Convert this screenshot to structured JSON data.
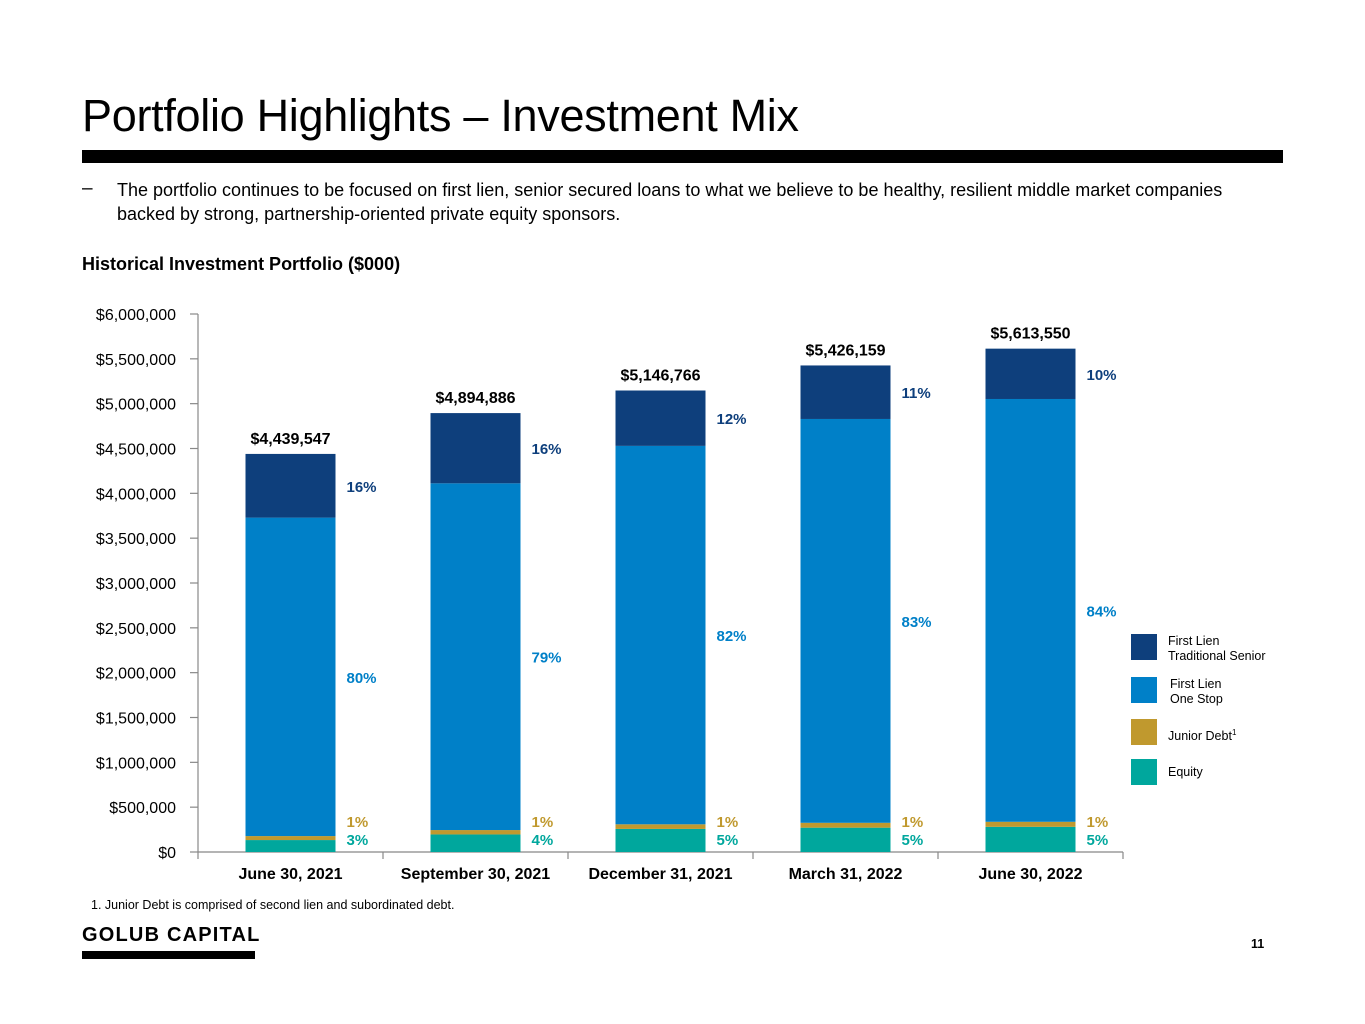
{
  "title": "Portfolio Highlights – Investment Mix",
  "bullet": {
    "dash": "–",
    "text": "The portfolio continues to be focused on first lien, senior secured loans to what we believe to be healthy, resilient middle market companies backed by strong, partnership-oriented private equity sponsors."
  },
  "chart_heading": "Historical Investment Portfolio ($000)",
  "chart_data": {
    "type": "bar",
    "stacked": true,
    "categories": [
      "June 30, 2021",
      "September 30, 2021",
      "December 31, 2021",
      "March 31, 2022",
      "June 30, 2022"
    ],
    "totals": [
      4439547,
      4894886,
      5146766,
      5426159,
      5613550
    ],
    "total_labels": [
      "$4,439,547",
      "$4,894,886",
      "$5,146,766",
      "$5,426,159",
      "$5,613,550"
    ],
    "series": [
      {
        "name": "Equity",
        "color": "#00A79D",
        "pct": [
          3,
          4,
          5,
          5,
          5
        ],
        "pct_labels": [
          "3%",
          "4%",
          "5%",
          "5%",
          "5%"
        ]
      },
      {
        "name": "Junior Debt",
        "color": "#C0992E",
        "pct": [
          1,
          1,
          1,
          1,
          1
        ],
        "pct_labels": [
          "1%",
          "1%",
          "1%",
          "1%",
          "1%"
        ]
      },
      {
        "name": "First Lien One Stop",
        "color": "#0080C8",
        "pct": [
          80,
          79,
          82,
          83,
          84
        ],
        "pct_labels": [
          "80%",
          "79%",
          "82%",
          "83%",
          "84%"
        ]
      },
      {
        "name": "First Lien Traditional Senior",
        "color": "#0E3F7C",
        "pct": [
          16,
          16,
          12,
          11,
          10
        ],
        "pct_labels": [
          "16%",
          "16%",
          "12%",
          "11%",
          "10%"
        ]
      }
    ],
    "ylim": [
      0,
      6000000
    ],
    "yticks": [
      0,
      500000,
      1000000,
      1500000,
      2000000,
      2500000,
      3000000,
      3500000,
      4000000,
      4500000,
      5000000,
      5500000,
      6000000
    ],
    "ytick_labels": [
      "$0",
      "$500,000",
      "$1,000,000",
      "$1,500,000",
      "$2,000,000",
      "$2,500,000",
      "$3,000,000",
      "$3,500,000",
      "$4,000,000",
      "$4,500,000",
      "$5,000,000",
      "$5,500,000",
      "$6,000,000"
    ],
    "grid": false,
    "legend_position": "right"
  },
  "legend": [
    {
      "label": "First Lien\nTraditional Senior",
      "color": "#0E3F7C",
      "icon": "legend-swatch"
    },
    {
      "label": "First Lien\nOne Stop",
      "color": "#0080C8",
      "icon": "legend-swatch"
    },
    {
      "label": "Junior Debt",
      "superscript": "1",
      "color": "#C0992E",
      "icon": "legend-swatch"
    },
    {
      "label": "Equity",
      "color": "#00A79D",
      "icon": "legend-swatch"
    }
  ],
  "footnote": "1.  Junior Debt is comprised of second lien and subordinated debt.",
  "logo": "GOLUB CAPITAL",
  "page_number": "11"
}
